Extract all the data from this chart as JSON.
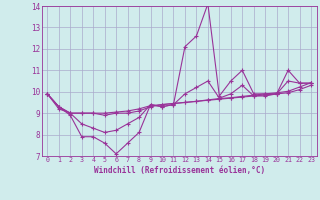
{
  "xlabel": "Windchill (Refroidissement éolien,°C)",
  "background_color": "#d0ecec",
  "line_color": "#993399",
  "grid_color": "#aaaacc",
  "xlim": [
    -0.5,
    23.5
  ],
  "ylim": [
    7,
    14
  ],
  "yticks": [
    7,
    8,
    9,
    10,
    11,
    12,
    13,
    14
  ],
  "xticks": [
    0,
    1,
    2,
    3,
    4,
    5,
    6,
    7,
    8,
    9,
    10,
    11,
    12,
    13,
    14,
    15,
    16,
    17,
    18,
    19,
    20,
    21,
    22,
    23
  ],
  "line1_x": [
    0,
    1,
    2,
    3,
    4,
    5,
    6,
    7,
    8,
    9,
    10,
    11,
    12,
    13,
    14,
    15,
    16,
    17,
    18,
    19,
    20,
    21,
    22,
    23
  ],
  "line1_y": [
    9.9,
    9.3,
    8.9,
    7.9,
    7.9,
    7.6,
    7.1,
    7.6,
    8.1,
    9.4,
    9.3,
    9.4,
    12.1,
    12.6,
    14.1,
    9.8,
    10.5,
    11.0,
    9.9,
    9.9,
    9.9,
    11.0,
    10.4,
    10.4
  ],
  "line2_x": [
    0,
    1,
    2,
    3,
    4,
    5,
    6,
    7,
    8,
    9,
    10,
    11,
    12,
    13,
    14,
    15,
    16,
    17,
    18,
    19,
    20,
    21,
    22,
    23
  ],
  "line2_y": [
    9.9,
    9.3,
    9.0,
    9.0,
    9.0,
    9.0,
    9.05,
    9.1,
    9.2,
    9.35,
    9.4,
    9.45,
    9.5,
    9.55,
    9.6,
    9.65,
    9.7,
    9.75,
    9.8,
    9.85,
    9.9,
    9.95,
    10.1,
    10.3
  ],
  "line3_x": [
    0,
    1,
    2,
    3,
    4,
    5,
    6,
    7,
    8,
    9,
    10,
    11,
    12,
    13,
    14,
    15,
    16,
    17,
    18,
    19,
    20,
    21,
    22,
    23
  ],
  "line3_y": [
    9.9,
    9.2,
    9.0,
    9.0,
    9.0,
    8.9,
    9.0,
    9.0,
    9.1,
    9.3,
    9.4,
    9.45,
    9.5,
    9.55,
    9.62,
    9.68,
    9.72,
    9.78,
    9.84,
    9.9,
    9.95,
    10.02,
    10.22,
    10.42
  ],
  "line4_x": [
    0,
    1,
    2,
    3,
    4,
    5,
    6,
    7,
    8,
    9,
    10,
    11,
    12,
    13,
    14,
    15,
    16,
    17,
    18,
    19,
    20,
    21,
    22,
    23
  ],
  "line4_y": [
    9.9,
    9.3,
    9.0,
    8.5,
    8.3,
    8.1,
    8.2,
    8.5,
    8.8,
    9.4,
    9.3,
    9.4,
    9.9,
    10.2,
    10.5,
    9.7,
    9.9,
    10.3,
    9.8,
    9.8,
    9.9,
    10.5,
    10.4,
    10.4
  ]
}
